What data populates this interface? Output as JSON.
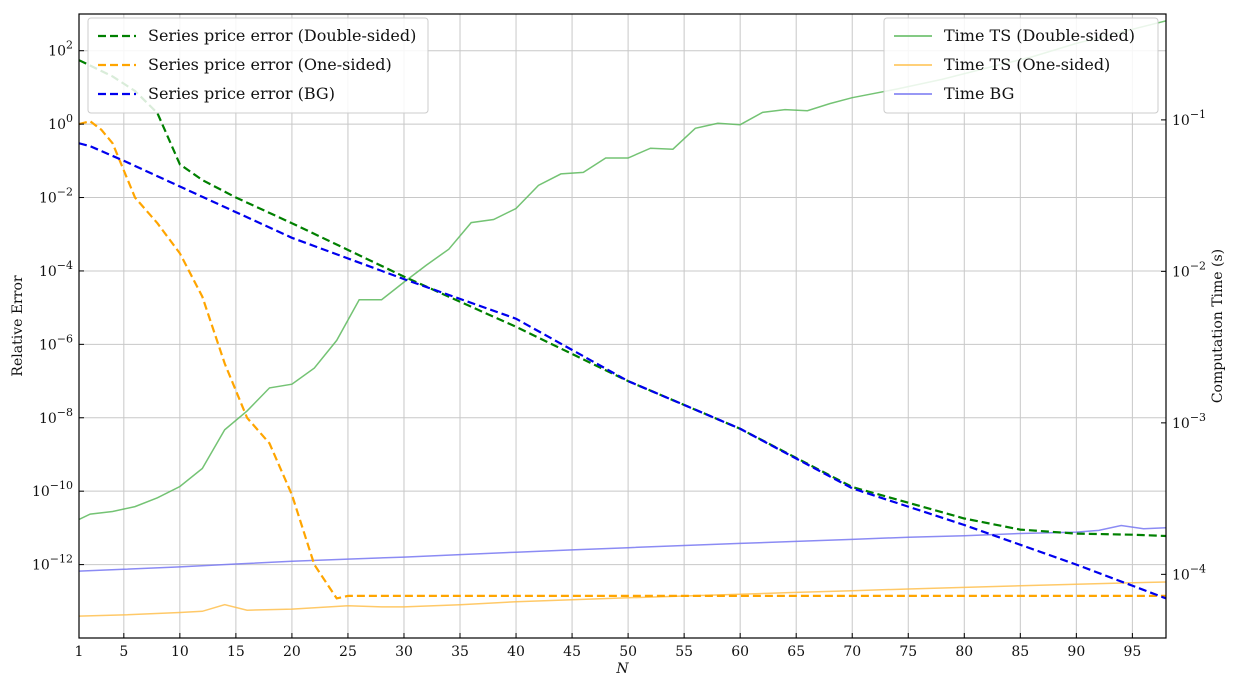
{
  "chart_data": {
    "type": "line",
    "title": "",
    "xlabel": "N",
    "ylabel_left": "Relative Error",
    "ylabel_right": "Computation Time (s)",
    "x_range": [
      1,
      98
    ],
    "x_ticks": [
      1,
      5,
      10,
      15,
      20,
      25,
      30,
      35,
      40,
      45,
      50,
      55,
      60,
      65,
      70,
      75,
      80,
      85,
      90,
      95
    ],
    "y_left": {
      "scale": "log",
      "range": [
        1e-14,
        1000
      ],
      "tick_exponents": [
        2,
        0,
        -2,
        -4,
        -6,
        -8,
        -10,
        -12
      ]
    },
    "y_right": {
      "scale": "log",
      "range": [
        3.8e-05,
        0.5
      ],
      "tick_exponents": [
        -1,
        -2,
        -3,
        -4
      ]
    },
    "grid": true,
    "legend_left_position": "top-left",
    "legend_right_position": "top-right",
    "series_left": [
      {
        "name": "Series price error (Double-sided)",
        "color": "#008000",
        "dash": "dashed",
        "x": [
          1,
          4,
          6,
          8,
          10,
          12,
          15,
          20,
          30,
          40,
          50,
          60,
          70,
          80,
          85,
          90,
          95,
          98
        ],
        "y": [
          55,
          20,
          8,
          2,
          0.08,
          0.03,
          0.01,
          0.002,
          7e-05,
          3e-06,
          1e-07,
          5e-09,
          1.3e-10,
          1.8e-11,
          9e-12,
          7e-12,
          6.5e-12,
          6e-12
        ]
      },
      {
        "name": "Series price error (One-sided)",
        "color": "#FFA500",
        "dash": "dashed",
        "x": [
          1,
          2,
          3,
          4,
          6,
          8,
          10,
          12,
          14,
          16,
          18,
          20,
          22,
          24,
          25,
          30,
          40,
          50,
          60,
          70,
          80,
          90,
          98
        ],
        "y": [
          1.0,
          1.2,
          0.7,
          0.3,
          0.01,
          0.002,
          0.0003,
          2e-05,
          3e-07,
          1e-08,
          2e-09,
          8e-11,
          1e-12,
          1.2e-13,
          1.4e-13,
          1.4e-13,
          1.4e-13,
          1.4e-13,
          1.4e-13,
          1.4e-13,
          1.4e-13,
          1.4e-13,
          1.4e-13
        ]
      },
      {
        "name": "Series price error (BG)",
        "color": "#0000EE",
        "dash": "dashed",
        "x": [
          1,
          2,
          5,
          10,
          20,
          30,
          40,
          50,
          60,
          70,
          80,
          90,
          98
        ],
        "y": [
          0.3,
          0.25,
          0.1,
          0.02,
          0.0008,
          6e-05,
          5e-06,
          1e-07,
          5e-09,
          1.2e-10,
          1.2e-11,
          1e-12,
          1.2e-13
        ]
      }
    ],
    "series_right": [
      {
        "name": "Time TS (Double-sided)",
        "color": "#5CB85C",
        "x": [
          1,
          2,
          4,
          6,
          8,
          10,
          12,
          14,
          16,
          18,
          20,
          22,
          24,
          26,
          28,
          30,
          32,
          34,
          36,
          38,
          40,
          42,
          44,
          46,
          48,
          50,
          52,
          54,
          56,
          58,
          60,
          62,
          64,
          66,
          68,
          70,
          74,
          78,
          82,
          86,
          90,
          94,
          98
        ],
        "y": [
          0.00023,
          0.00025,
          0.00026,
          0.00028,
          0.00032,
          0.00038,
          0.0005,
          0.0009,
          0.0012,
          0.0017,
          0.0018,
          0.0023,
          0.0035,
          0.0065,
          0.0065,
          0.0085,
          0.011,
          0.014,
          0.021,
          0.022,
          0.026,
          0.037,
          0.044,
          0.045,
          0.056,
          0.056,
          0.065,
          0.064,
          0.088,
          0.095,
          0.093,
          0.112,
          0.117,
          0.115,
          0.128,
          0.14,
          0.16,
          0.185,
          0.22,
          0.26,
          0.32,
          0.38,
          0.45
        ]
      },
      {
        "name": "Time TS (One-sided)",
        "color": "#FFC04D",
        "x": [
          1,
          5,
          10,
          12,
          14,
          16,
          20,
          25,
          28,
          30,
          35,
          40,
          45,
          50,
          55,
          60,
          65,
          70,
          75,
          80,
          85,
          90,
          95,
          98
        ],
        "y": [
          5.3e-05,
          5.4e-05,
          5.6e-05,
          5.7e-05,
          6.3e-05,
          5.8e-05,
          5.9e-05,
          6.2e-05,
          6.1e-05,
          6.1e-05,
          6.3e-05,
          6.6e-05,
          6.8e-05,
          7e-05,
          7.2e-05,
          7.4e-05,
          7.6e-05,
          7.8e-05,
          8e-05,
          8.2e-05,
          8.4e-05,
          8.6e-05,
          8.8e-05,
          8.9e-05
        ]
      },
      {
        "name": "Time BG",
        "color": "#7777F2",
        "x": [
          1,
          5,
          10,
          15,
          20,
          25,
          30,
          35,
          40,
          45,
          50,
          55,
          60,
          65,
          70,
          75,
          80,
          85,
          90,
          92,
          94,
          96,
          98
        ],
        "y": [
          0.000105,
          0.000108,
          0.000112,
          0.000117,
          0.000122,
          0.000126,
          0.00013,
          0.000135,
          0.00014,
          0.000145,
          0.00015,
          0.000155,
          0.00016,
          0.000165,
          0.00017,
          0.000176,
          0.00018,
          0.000186,
          0.00019,
          0.000195,
          0.00021,
          0.0002,
          0.000203
        ]
      }
    ]
  }
}
